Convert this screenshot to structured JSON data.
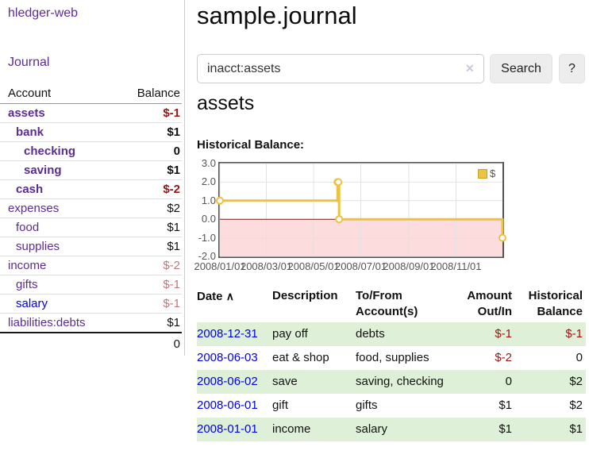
{
  "colors": {
    "link_purple": "#5c2d91",
    "link_blue": "#0000e8",
    "negative_strong": "#a01414",
    "negative_soft": "#c27878",
    "row_shade_green": "#dff0d8",
    "chart_line": "#edc240",
    "chart_negative_area": "#fcdcdc",
    "chart_zero_line": "#7e1a1a",
    "chart_border": "#545454"
  },
  "app": {
    "brand": "hledger-web",
    "nav_journal": "Journal"
  },
  "sidebar": {
    "header": {
      "account": "Account",
      "balance": "Balance"
    },
    "accounts": [
      {
        "name": "assets",
        "balance": "$-1",
        "indent": 1,
        "bold": true,
        "negative": "strong"
      },
      {
        "name": "bank",
        "balance": "$1",
        "indent": 2,
        "bold": true,
        "negative": null
      },
      {
        "name": "checking",
        "balance": "0",
        "indent": 3,
        "bold": true,
        "negative": null
      },
      {
        "name": "saving",
        "balance": "$1",
        "indent": 3,
        "bold": true,
        "negative": null
      },
      {
        "name": "cash",
        "balance": "$-2",
        "indent": 2,
        "bold": true,
        "negative": "strong"
      },
      {
        "name": "expenses",
        "balance": "$2",
        "indent": 1,
        "bold": false,
        "negative": null
      },
      {
        "name": "food",
        "balance": "$1",
        "indent": 2,
        "bold": false,
        "negative": null
      },
      {
        "name": "supplies",
        "balance": "$1",
        "indent": 2,
        "bold": false,
        "negative": null
      },
      {
        "name": "income",
        "balance": "$-2",
        "indent": 1,
        "bold": false,
        "negative": "soft"
      },
      {
        "name": "gifts",
        "balance": "$-1",
        "indent": 2,
        "bold": false,
        "negative": "soft"
      },
      {
        "name": "salary",
        "balance": "$-1",
        "indent": 2,
        "bold": false,
        "negative": "soft",
        "unvisited": true
      },
      {
        "name": "liabilities:debts",
        "balance": "$1",
        "indent": 1,
        "bold": false,
        "negative": null
      }
    ],
    "total": "0"
  },
  "header": {
    "title": "sample.journal"
  },
  "search": {
    "value": "inacct:assets",
    "clear_icon": "✕",
    "button_label": "Search",
    "help_label": "?"
  },
  "account_page": {
    "title": "assets",
    "chart_label": "Historical Balance:"
  },
  "chart_data": {
    "type": "line",
    "title": "Historical Balance",
    "step": true,
    "grid": true,
    "legend_position": "top-right",
    "legend": [
      {
        "label": "$",
        "color": "#edc240"
      }
    ],
    "ylim": [
      -2,
      3
    ],
    "y_tick_labels": [
      "3.0",
      "2.0",
      "1.0",
      "0.0",
      "-1.0",
      "-2.0"
    ],
    "x_tick_labels": [
      "2008/01/01",
      "2008/03/01",
      "2008/05/01",
      "2008/07/01",
      "2008/09/01",
      "2008/11/01"
    ],
    "x_range": [
      "2008-01-01",
      "2008-12-31"
    ],
    "negative_region_shaded": true,
    "series": [
      {
        "name": "$",
        "points": [
          {
            "x": "2008-01-01",
            "y": 1
          },
          {
            "x": "2008-06-01",
            "y": 2
          },
          {
            "x": "2008-06-02",
            "y": 2
          },
          {
            "x": "2008-06-03",
            "y": 0
          },
          {
            "x": "2008-12-31",
            "y": -1
          }
        ]
      }
    ]
  },
  "register": {
    "sort_indicator": "∧",
    "columns": {
      "date": "Date",
      "description": "Description",
      "accounts": "To/From Account(s)",
      "amount": "Amount Out/In",
      "balance": "Historical Balance"
    },
    "rows": [
      {
        "date": "2008-12-31",
        "description": "pay off",
        "accounts": "debts",
        "amount": "$-1",
        "balance": "$-1",
        "amount_negative": true,
        "balance_negative": true,
        "shaded": true
      },
      {
        "date": "2008-06-03",
        "description": "eat & shop",
        "accounts": "food, supplies",
        "amount": "$-2",
        "balance": "0",
        "amount_negative": true,
        "balance_negative": false,
        "shaded": false
      },
      {
        "date": "2008-06-02",
        "description": "save",
        "accounts": "saving, checking",
        "amount": "0",
        "balance": "$2",
        "amount_negative": false,
        "balance_negative": false,
        "shaded": true
      },
      {
        "date": "2008-06-01",
        "description": "gift",
        "accounts": "gifts",
        "amount": "$1",
        "balance": "$2",
        "amount_negative": false,
        "balance_negative": false,
        "shaded": false
      },
      {
        "date": "2008-01-01",
        "description": "income",
        "accounts": "salary",
        "amount": "$1",
        "balance": "$1",
        "amount_negative": false,
        "balance_negative": false,
        "shaded": true
      }
    ]
  }
}
